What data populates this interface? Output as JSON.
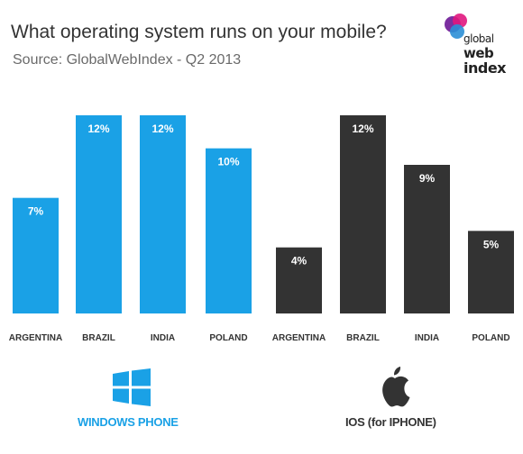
{
  "header": {
    "title": "What operating system runs on your mobile?",
    "subtitle": "Source: GlobalWebIndex - Q2 2013"
  },
  "logo": {
    "line1": "global",
    "line2": "web",
    "line3": "index"
  },
  "chart_data": [
    {
      "type": "bar",
      "categories": [
        "ARGENTINA",
        "BRAZIL",
        "INDIA",
        "POLAND"
      ],
      "series": [
        {
          "name": "WINDOWS PHONE",
          "values": [
            7,
            12,
            12,
            10
          ],
          "color": "#1aa1e6"
        }
      ],
      "value_labels": [
        "7%",
        "12%",
        "12%",
        "10%"
      ],
      "ylim": [
        0,
        12
      ],
      "grid": false
    },
    {
      "type": "bar",
      "categories": [
        "ARGENTINA",
        "BRAZIL",
        "INDIA",
        "POLAND"
      ],
      "series": [
        {
          "name": "IOS (for IPHONE)",
          "values": [
            4,
            12,
            9,
            5
          ],
          "color": "#333333"
        }
      ],
      "value_labels": [
        "4%",
        "12%",
        "9%",
        "5%"
      ],
      "ylim": [
        0,
        12
      ],
      "grid": false
    }
  ],
  "icons": {
    "windows": "windows-logo-icon",
    "apple": "apple-logo-icon"
  }
}
